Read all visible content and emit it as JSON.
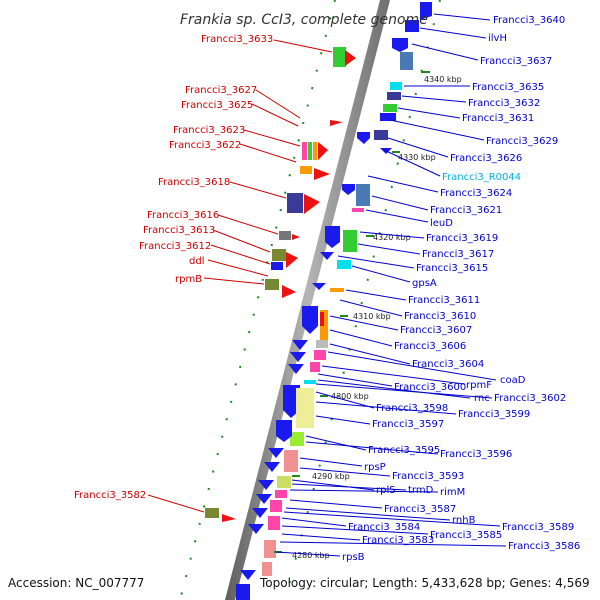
{
  "title": "Frankia sp. CcI3, complete genome",
  "footer": {
    "accession": "Accession: NC_007777",
    "summary": "Topology: circular; Length: 5,433,628 bp; Genes: 4,569"
  },
  "ticks": [
    "4340 kbp",
    "4330 kbp",
    "4320 kbp",
    "4310 kbp",
    "4300 kbp",
    "4290 kbp",
    "4280 kbp"
  ],
  "left_labels": [
    "Francci3_3633",
    "Francci3_3627",
    "Francci3_3625",
    "Francci3_3623",
    "Francci3_3622",
    "Francci3_3618",
    "Francci3_3616",
    "Francci3_3613",
    "Francci3_3612",
    "ddl",
    "rpmB",
    "Francci3_3582"
  ],
  "right_labels": [
    "Francci3_3640",
    "ilvH",
    "Francci3_3637",
    "Francci3_3635",
    "Francci3_3632",
    "Francci3_3631",
    "Francci3_3629",
    "Francci3_3626",
    "Francci3_R0044",
    "Francci3_3624",
    "Francci3_3621",
    "leuD",
    "Francci3_3619",
    "Francci3_3617",
    "Francci3_3615",
    "gpsA",
    "Francci3_3611",
    "Francci3_3610",
    "Francci3_3607",
    "Francci3_3606",
    "Francci3_3604",
    "coaD",
    "rpmF",
    "Francci3_3600",
    "rnc",
    "Francci3_3602",
    "Francci3_3598",
    "Francci3_3599",
    "Francci3_3597",
    "Francci3_3595",
    "Francci3_3596",
    "rpsP",
    "Francci3_3593",
    "rplS",
    "trmD",
    "rimM",
    "Francci3_3587",
    "rnhB",
    "Francci3_3589",
    "Francci3_3584",
    "Francci3_3585",
    "Francci3_3583",
    "Francci3_3586",
    "rpsB"
  ],
  "colors": {
    "forward_label": "#cc0000",
    "reverse_label": "#0000cc",
    "rna_label": "#00b0d8",
    "backbone": "#8c8c8c",
    "gene_blue": "#1a1aee",
    "gene_red": "#ee1111",
    "gene_green": "#33cc33",
    "gene_olive": "#778833",
    "gene_navy": "#3a3a99",
    "gene_steel": "#4a7ab5",
    "gene_cyan": "#00e0ee",
    "gene_pink": "#ff44aa",
    "gene_orange": "#ff9900",
    "gene_yellow": "#eeee99",
    "gene_salmon": "#f09090"
  }
}
